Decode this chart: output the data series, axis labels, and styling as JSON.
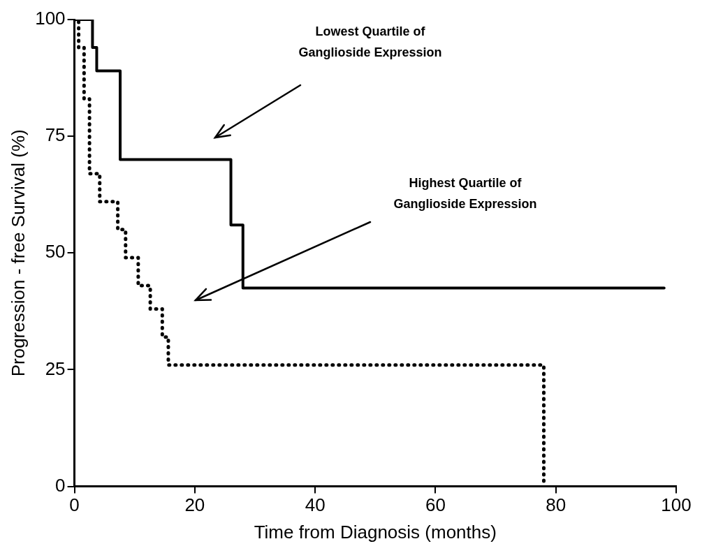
{
  "chart_data": {
    "type": "step",
    "xlabel": "Time from Diagnosis (months)",
    "ylabel": "Progression - free Survival (%)",
    "series": [
      {
        "color": "#000000",
        "line_style": "solid",
        "x": [
          0,
          3,
          3.7,
          7.6,
          26,
          28,
          98
        ],
        "values": [
          100,
          94,
          89,
          70,
          56,
          42.5,
          42.5
        ]
      },
      {
        "color": "#000000",
        "line_style": "dotted",
        "x": [
          0,
          0.7,
          1.6,
          2.5,
          4.2,
          7.2,
          8.5,
          10.6,
          12.6,
          14.6,
          15.6,
          78
        ],
        "values": [
          100,
          94,
          83,
          67,
          61,
          55,
          49,
          43,
          38,
          32,
          26,
          0
        ]
      }
    ],
    "annotations": [
      "Lowest Quartile of Ganglioside Expression",
      "Highest Quartile of Ganglioside Expression"
    ],
    "xlim": [
      0,
      100
    ],
    "xticks": [
      0,
      20,
      40,
      60,
      80,
      100
    ],
    "ylim": [
      0,
      100
    ],
    "yticks": [
      0,
      25,
      50,
      75,
      100
    ],
    "grid": false,
    "legend": false,
    "marker": "none"
  }
}
